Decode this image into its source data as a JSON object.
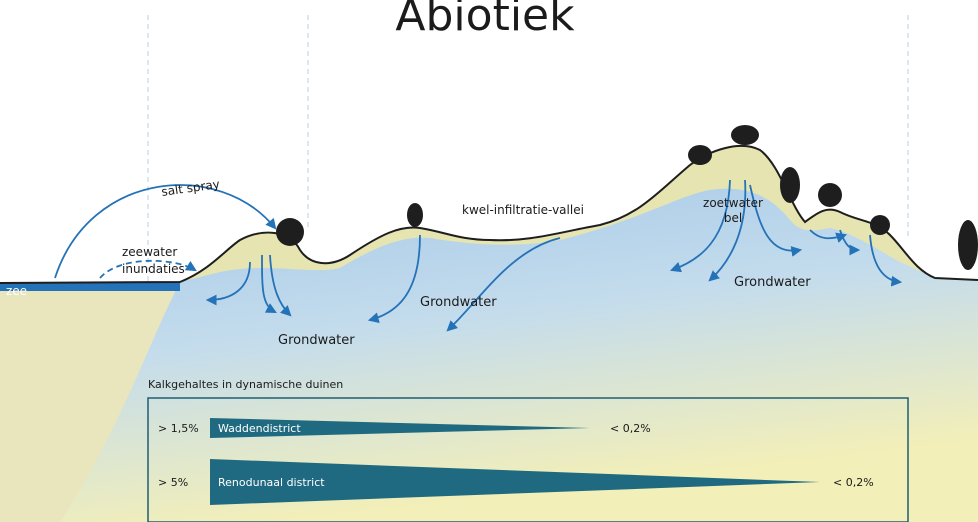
{
  "title": "Abiotiek",
  "labels": {
    "salt_spray": "salt spray",
    "zeewater": "zeewater",
    "inundaties": "inundaties",
    "zee": "zee",
    "vallei": "kwel-infiltratie-vallei",
    "zoetwater": "zoetwater",
    "bel": "bel",
    "grondwater": [
      "Grondwater",
      "Grondwater",
      "Grondwater"
    ]
  },
  "legend": {
    "title": "Kalkgehaltes in dynamische duinen",
    "rows": [
      {
        "left": "> 1,5%",
        "name": "Waddendistrict",
        "right": "< 0,2%"
      },
      {
        "left": "> 5%",
        "name": "Renodunaal district",
        "right": "< 0,2%"
      }
    ]
  }
}
